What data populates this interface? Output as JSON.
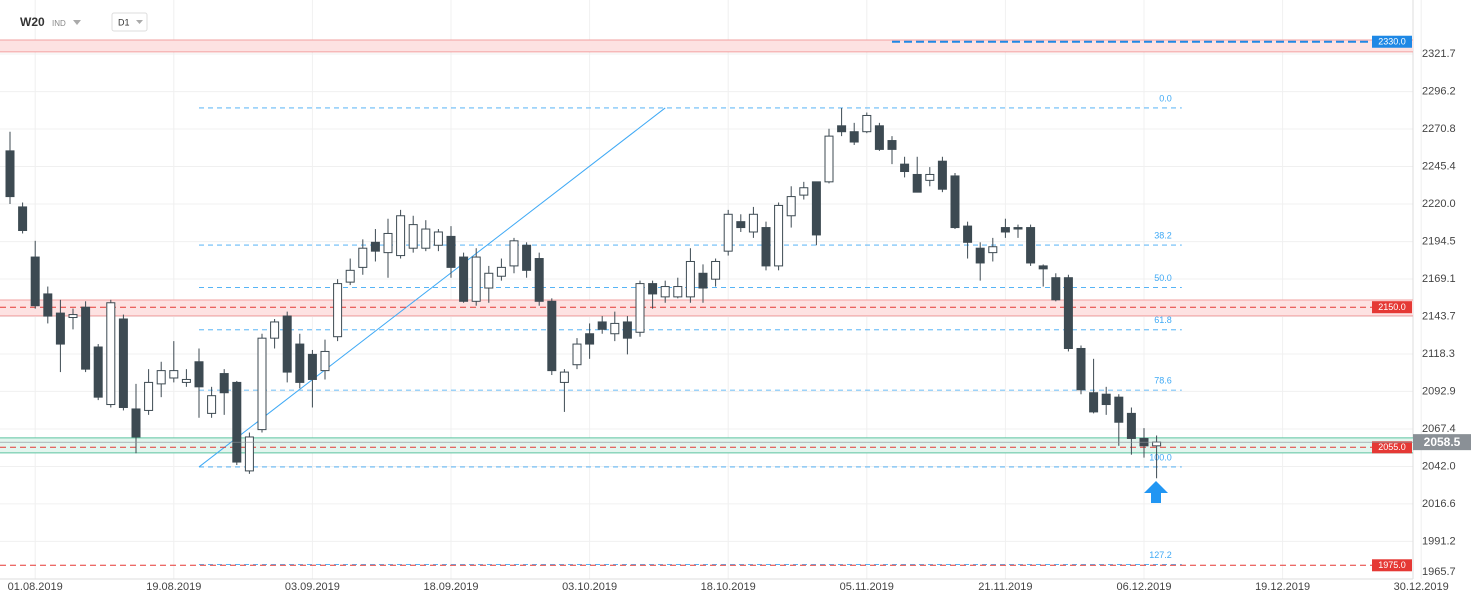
{
  "chart_data": {
    "type": "candlestick",
    "title": "W20",
    "subtitle": "IND",
    "interval": "D1",
    "categories": [
      null,
      null,
      "01.08.2019",
      null,
      null,
      null,
      null,
      null,
      null,
      null,
      null,
      null,
      null,
      "19.08.2019",
      null,
      null,
      null,
      null,
      null,
      null,
      null,
      null,
      null,
      null,
      "03.09.2019",
      null,
      null,
      null,
      null,
      null,
      null,
      null,
      null,
      null,
      null,
      "18.09.2019",
      null,
      null,
      null,
      null,
      null,
      null,
      null,
      null,
      null,
      null,
      "03.10.2019",
      null,
      null,
      null,
      null,
      null,
      null,
      null,
      null,
      null,
      null,
      "18.10.2019",
      null,
      null,
      null,
      null,
      null,
      null,
      null,
      null,
      null,
      null,
      "05.11.2019",
      null,
      null,
      null,
      null,
      null,
      null,
      null,
      null,
      null,
      null,
      "21.11.2019",
      null,
      null,
      null,
      null,
      null,
      null,
      null,
      null,
      null,
      null,
      "06.12.2019",
      null,
      null,
      null,
      null,
      null,
      null,
      null,
      null,
      null,
      null,
      "19.12.2019",
      null,
      null,
      null,
      null,
      null,
      null,
      null,
      null,
      null,
      null,
      "30.12.2019"
    ],
    "open": [
      2256,
      2218,
      2184,
      2159,
      2146,
      2143,
      2150,
      2123,
      2084,
      2142,
      2081,
      2080,
      2098,
      2102,
      2099,
      2113,
      2078,
      2105,
      2099,
      2039,
      2067,
      2129,
      2144,
      2125,
      2118,
      2107,
      2130,
      2167,
      2177,
      2194,
      2187,
      2185,
      2190,
      2190,
      2192,
      2198,
      2184,
      2154,
      2163,
      2171,
      2178,
      2192,
      2183,
      2154,
      2099,
      2111,
      2132,
      2140,
      2132,
      2140,
      2133,
      2166,
      2157,
      2157,
      2157,
      2173,
      2169,
      2188,
      2208,
      2201,
      2204,
      2178,
      2212,
      2226,
      2235,
      2235,
      2273,
      2269,
      2269,
      2273,
      2263,
      2247,
      2240,
      2236,
      2249,
      2239,
      2205,
      2190,
      2187,
      2204,
      2204,
      2204,
      2178,
      2170,
      2170,
      2122,
      2092,
      2091,
      2089,
      2078,
      2061,
      2056,
      null,
      null,
      null,
      null,
      null,
      null,
      null,
      null,
      null,
      null,
      null,
      null,
      null,
      null,
      null,
      null,
      null,
      null,
      null,
      null,
      null
    ],
    "high": [
      2269,
      2221,
      2195,
      2164,
      2155,
      2149,
      2154,
      2125,
      2155,
      2145,
      2098,
      2108,
      2113,
      2127,
      2108,
      2122,
      2096,
      2108,
      2100,
      2065,
      2132,
      2142,
      2147,
      2132,
      2121,
      2128,
      2169,
      2183,
      2196,
      2203,
      2210,
      2216,
      2212,
      2209,
      2203,
      2205,
      2187,
      2190,
      2178,
      2183,
      2197,
      2194,
      2187,
      2156,
      2108,
      2129,
      2139,
      2144,
      2147,
      2144,
      2168,
      2168,
      2168,
      2170,
      2190,
      2179,
      2183,
      2216,
      2213,
      2218,
      2208,
      2221,
      2232,
      2235,
      2235,
      2271,
      2285,
      2275,
      2282,
      2275,
      2266,
      2252,
      2252,
      2245,
      2252,
      2241,
      2208,
      2194,
      2197,
      2210,
      2206,
      2206,
      2179,
      2173,
      2172,
      2124,
      2115,
      2096,
      2091,
      2082,
      2068,
      2063,
      null,
      null,
      null,
      null,
      null,
      null,
      null,
      null,
      null,
      null,
      null,
      null,
      null,
      null,
      null,
      null,
      null,
      null,
      null,
      null,
      null
    ],
    "low": [
      2220,
      2200,
      2149,
      2139,
      2106,
      2135,
      2106,
      2087,
      2082,
      2080,
      2051,
      2077,
      2089,
      2099,
      2096,
      2075,
      2075,
      2077,
      2043,
      2037,
      2065,
      2122,
      2099,
      2095,
      2082,
      2101,
      2127,
      2165,
      2172,
      2181,
      2170,
      2183,
      2187,
      2188,
      2188,
      2170,
      2153,
      2151,
      2153,
      2168,
      2173,
      2170,
      2151,
      2104,
      2079,
      2108,
      2115,
      2132,
      2127,
      2118,
      2130,
      2149,
      2153,
      2156,
      2153,
      2153,
      2164,
      2185,
      2201,
      2197,
      2175,
      2175,
      2204,
      2223,
      2192,
      2234,
      2266,
      2260,
      2268,
      2256,
      2247,
      2238,
      2228,
      2232,
      2228,
      2203,
      2183,
      2168,
      2181,
      2197,
      2197,
      2178,
      2164,
      2154,
      2120,
      2091,
      2078,
      2077,
      2056,
      2050,
      2048,
      2034,
      null,
      null,
      null,
      null,
      null,
      null,
      null,
      null,
      null,
      null,
      null,
      null,
      null,
      null,
      null,
      null,
      null,
      null,
      null,
      null,
      null
    ],
    "close": [
      2225,
      2202,
      2151,
      2144,
      2125,
      2145,
      2108,
      2089,
      2153,
      2082,
      2062,
      2099,
      2107,
      2107,
      2101,
      2096,
      2090,
      2092,
      2045,
      2062,
      2129,
      2140,
      2106,
      2099,
      2101,
      2120,
      2166,
      2175,
      2190,
      2188,
      2200,
      2212,
      2206,
      2203,
      2201,
      2177,
      2154,
      2184,
      2173,
      2177,
      2195,
      2175,
      2154,
      2107,
      2106,
      2125,
      2125,
      2135,
      2139,
      2129,
      2166,
      2159,
      2164,
      2164,
      2181,
      2163,
      2181,
      2213,
      2204,
      2213,
      2178,
      2219,
      2225,
      2231,
      2199,
      2266,
      2269,
      2262,
      2280,
      2257,
      2257,
      2242,
      2228,
      2240,
      2230,
      2204,
      2194,
      2180,
      2191,
      2201,
      2203,
      2180,
      2176,
      2155,
      2122,
      2094,
      2079,
      2084,
      2072,
      2061,
      2056,
      2058.5,
      null,
      null,
      null,
      null,
      null,
      null,
      null,
      null,
      null,
      null,
      null,
      null,
      null,
      null,
      null,
      null,
      null,
      null,
      null,
      null,
      null
    ],
    "up_color": "#ffffff",
    "down_color": "#3d4a52",
    "ylim": [
      1965.7,
      2358.3
    ],
    "yticks": [
      2321.7,
      2296.2,
      2270.8,
      2245.4,
      {
        "value": 2220,
        "label": "2220.0"
      },
      2194.5,
      2169.1,
      2143.7,
      2118.3,
      2092.9,
      2067.4,
      {
        "value": 2042,
        "label": "2042.0"
      },
      2016.6,
      1991.2,
      1965.7
    ],
    "grid": true,
    "zones": [
      {
        "low": 2323.1,
        "high": 2331.2,
        "color": "#fde2e2",
        "border": "#f2a0a0"
      },
      {
        "low": 2144.1,
        "high": 2154.9,
        "color": "#fde2e2",
        "border": "#f2a0a0"
      },
      {
        "low": 2051.2,
        "high": 2061.4,
        "color": "#e3f5ee",
        "border": "#5cc4a0"
      }
    ],
    "levels": [
      {
        "value": 2330,
        "label": "2330.0",
        "color": "#1e88e5",
        "from": 70
      },
      {
        "value": 2150,
        "label": "2150.0",
        "color": "#e53935"
      },
      {
        "value": 2055,
        "label": "2055.0",
        "color": "#e53935"
      },
      {
        "value": 1975,
        "label": "1975.0",
        "color": "#e53935"
      }
    ],
    "trendline": {
      "x": [
        15,
        52
      ],
      "y": [
        2041.7,
        2285.1
      ],
      "color": "#3fa9f5"
    },
    "fibonacci": {
      "high": 2285.1,
      "low": 2041.7,
      "from": 15,
      "to": 93,
      "color": "#3fa9f5",
      "levels": [
        {
          "value": 0,
          "label": "0.0"
        },
        38.2,
        {
          "value": 50,
          "label": "50.0"
        },
        61.8,
        78.6,
        {
          "value": 100,
          "label": "100.0"
        },
        127.2
      ]
    },
    "last_price": {
      "value": 2058.5,
      "color": "#8a9096"
    }
  }
}
